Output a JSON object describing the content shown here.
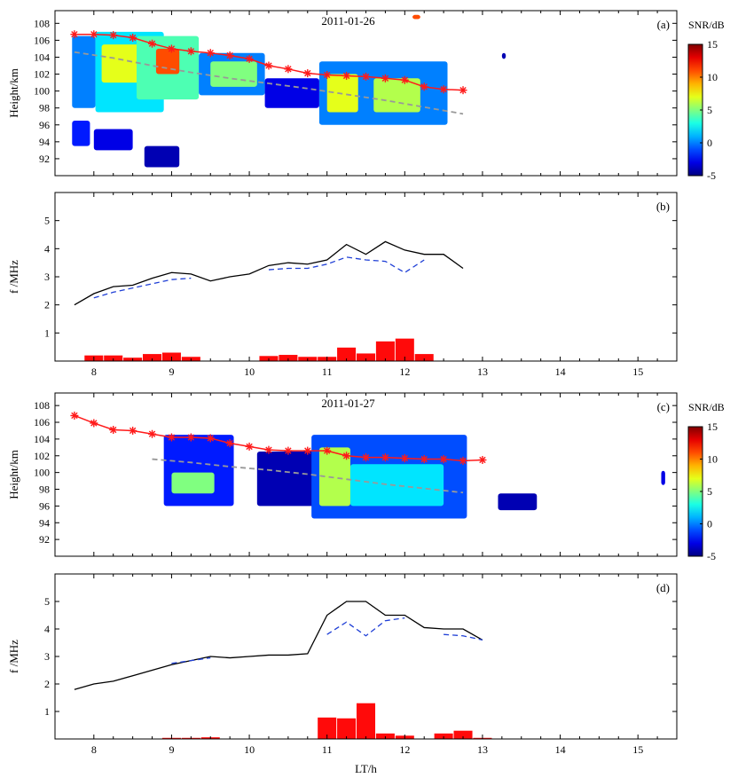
{
  "chart_data": [
    {
      "panel": "(a)",
      "type": "heatmap",
      "date": "2011-01-26",
      "ylabel": "Height/km",
      "xlim": [
        7.5,
        15.5
      ],
      "ylim": [
        90,
        109.5
      ],
      "yticks": [
        92,
        94,
        96,
        98,
        100,
        102,
        104,
        106,
        108
      ],
      "colorbar": {
        "label": "SNR/dB",
        "min": -5,
        "max": 15,
        "ticks": [
          -5,
          0,
          5,
          10,
          15
        ]
      },
      "snr_regions": [
        {
          "x0": 7.72,
          "x1": 8.02,
          "y0": 98,
          "y1": 106.5,
          "snr": 0
        },
        {
          "x0": 8.02,
          "x1": 8.9,
          "y0": 97.5,
          "y1": 107,
          "snr": 2
        },
        {
          "x0": 8.1,
          "x1": 8.6,
          "y0": 101,
          "y1": 105.5,
          "snr": 7
        },
        {
          "x0": 8.55,
          "x1": 9.35,
          "y0": 99,
          "y1": 106.5,
          "snr": 4
        },
        {
          "x0": 8.8,
          "x1": 9.1,
          "y0": 102,
          "y1": 105,
          "snr": 11
        },
        {
          "x0": 9.35,
          "x1": 10.2,
          "y0": 99.5,
          "y1": 104.5,
          "snr": 0
        },
        {
          "x0": 9.5,
          "x1": 10.1,
          "y0": 100.5,
          "y1": 103.5,
          "snr": 5
        },
        {
          "x0": 10.2,
          "x1": 10.9,
          "y0": 98,
          "y1": 101.5,
          "snr": -3
        },
        {
          "x0": 10.9,
          "x1": 12.55,
          "y0": 96,
          "y1": 103.5,
          "snr": 0
        },
        {
          "x0": 11.0,
          "x1": 11.4,
          "y0": 97.5,
          "y1": 102,
          "snr": 7
        },
        {
          "x0": 11.6,
          "x1": 12.2,
          "y0": 97.5,
          "y1": 101.5,
          "snr": 6
        },
        {
          "x0": 7.72,
          "x1": 7.95,
          "y0": 93.5,
          "y1": 96.5,
          "snr": -2
        },
        {
          "x0": 8.0,
          "x1": 8.5,
          "y0": 93,
          "y1": 95.5,
          "snr": -3
        },
        {
          "x0": 8.65,
          "x1": 9.1,
          "y0": 91,
          "y1": 93.5,
          "snr": -4
        },
        {
          "x0": 12.1,
          "x1": 12.2,
          "y0": 108.5,
          "y1": 109,
          "snr": 11
        },
        {
          "x0": 13.25,
          "x1": 13.3,
          "y0": 103.8,
          "y1": 104.5,
          "snr": -4
        }
      ],
      "series": [
        {
          "style": "red-star-line",
          "x": [
            7.75,
            8.0,
            8.25,
            8.5,
            8.75,
            9.0,
            9.25,
            9.5,
            9.75,
            10.0,
            10.25,
            10.5,
            10.75,
            11.0,
            11.25,
            11.5,
            11.75,
            12.0,
            12.25,
            12.5,
            12.75
          ],
          "y": [
            106.7,
            106.7,
            106.6,
            106.3,
            105.6,
            105.0,
            104.7,
            104.5,
            104.2,
            103.8,
            103.0,
            102.6,
            102.1,
            101.9,
            101.8,
            101.7,
            101.5,
            101.3,
            100.5,
            100.2,
            100.1
          ]
        },
        {
          "style": "gray-dashed-line",
          "x": [
            7.75,
            8.25,
            8.75,
            9.25,
            9.75,
            10.25,
            10.75,
            11.25,
            11.75,
            12.25,
            12.75
          ],
          "y": [
            104.6,
            103.9,
            103.0,
            102.2,
            101.5,
            100.9,
            100.3,
            99.6,
            98.9,
            98.1,
            97.3
          ]
        }
      ]
    },
    {
      "panel": "(b)",
      "type": "line+bar",
      "ylabel": "f /MHz",
      "xlim": [
        7.5,
        15.5
      ],
      "ylim": [
        0,
        6
      ],
      "yticks": [
        1,
        2,
        3,
        4,
        5
      ],
      "series": [
        {
          "style": "black-solid-line",
          "x": [
            7.75,
            8.0,
            8.25,
            8.5,
            8.75,
            9.0,
            9.25,
            9.5,
            9.75,
            10.0,
            10.25,
            10.5,
            10.75,
            11.0,
            11.25,
            11.5,
            11.75,
            12.0,
            12.25,
            12.5,
            12.75
          ],
          "y": [
            2.0,
            2.4,
            2.65,
            2.7,
            2.95,
            3.15,
            3.1,
            2.85,
            3.0,
            3.1,
            3.4,
            3.5,
            3.45,
            3.6,
            4.15,
            3.8,
            4.25,
            3.95,
            3.8,
            3.8,
            3.3
          ]
        },
        {
          "style": "blue-dashed-line",
          "segments": [
            {
              "x": [
                8.0,
                8.25,
                8.5,
                8.75,
                9.0,
                9.25
              ],
              "y": [
                2.25,
                2.45,
                2.6,
                2.75,
                2.9,
                2.95
              ]
            },
            {
              "x": [
                10.25,
                10.5,
                10.75,
                11.0,
                11.25,
                11.5,
                11.75,
                12.0,
                12.25
              ],
              "y": [
                3.25,
                3.3,
                3.3,
                3.45,
                3.7,
                3.6,
                3.55,
                3.15,
                3.6
              ]
            }
          ]
        },
        {
          "style": "red-bars",
          "x": [
            8.0,
            8.25,
            8.5,
            8.75,
            9.0,
            9.25,
            10.25,
            10.5,
            10.75,
            11.0,
            11.25,
            11.5,
            11.75,
            12.0,
            12.25
          ],
          "y": [
            0.2,
            0.2,
            0.12,
            0.25,
            0.3,
            0.15,
            0.18,
            0.22,
            0.15,
            0.15,
            0.48,
            0.27,
            0.7,
            0.8,
            0.25
          ]
        }
      ]
    },
    {
      "panel": "(c)",
      "type": "heatmap",
      "date": "2011-01-27",
      "ylabel": "Height/km",
      "xlim": [
        7.5,
        15.5
      ],
      "ylim": [
        90,
        109.5
      ],
      "yticks": [
        92,
        94,
        96,
        98,
        100,
        102,
        104,
        106,
        108
      ],
      "colorbar": {
        "label": "SNR/dB",
        "min": -5,
        "max": 15,
        "ticks": [
          -5,
          0,
          5,
          10,
          15
        ]
      },
      "snr_regions": [
        {
          "x0": 8.9,
          "x1": 9.8,
          "y0": 96,
          "y1": 104.5,
          "snr": -2
        },
        {
          "x0": 9.0,
          "x1": 9.55,
          "y0": 97.5,
          "y1": 100,
          "snr": 5
        },
        {
          "x0": 10.1,
          "x1": 10.9,
          "y0": 96,
          "y1": 102.5,
          "snr": -4
        },
        {
          "x0": 10.8,
          "x1": 12.8,
          "y0": 94.5,
          "y1": 104.5,
          "snr": -1
        },
        {
          "x0": 10.9,
          "x1": 11.3,
          "y0": 96,
          "y1": 103,
          "snr": 6
        },
        {
          "x0": 11.3,
          "x1": 12.5,
          "y0": 96,
          "y1": 101,
          "snr": 2
        },
        {
          "x0": 13.2,
          "x1": 13.7,
          "y0": 95.5,
          "y1": 97.5,
          "snr": -4
        },
        {
          "x0": 15.3,
          "x1": 15.35,
          "y0": 98.5,
          "y1": 100.2,
          "snr": -3
        }
      ],
      "series": [
        {
          "style": "red-star-line",
          "x": [
            7.75,
            8.0,
            8.25,
            8.5,
            8.75,
            9.0,
            9.25,
            9.5,
            9.75,
            10.0,
            10.25,
            10.5,
            10.75,
            11.0,
            11.25,
            11.5,
            11.75,
            12.0,
            12.25,
            12.5,
            12.75,
            13.0
          ],
          "y": [
            106.8,
            105.9,
            105.1,
            105.0,
            104.6,
            104.2,
            104.2,
            104.1,
            103.5,
            103.1,
            102.7,
            102.6,
            102.6,
            102.6,
            102.0,
            101.8,
            101.8,
            101.7,
            101.6,
            101.6,
            101.4,
            101.5
          ]
        },
        {
          "style": "gray-dashed-line",
          "x": [
            8.75,
            9.25,
            9.75,
            10.25,
            10.75,
            11.25,
            11.75,
            12.25,
            12.75
          ],
          "y": [
            101.6,
            101.2,
            100.7,
            100.3,
            99.8,
            99.2,
            98.6,
            98.1,
            97.6
          ]
        }
      ]
    },
    {
      "panel": "(d)",
      "type": "line+bar",
      "ylabel": "f /MHz",
      "xlabel": "LT/h",
      "xlim": [
        7.5,
        15.5
      ],
      "ylim": [
        0,
        6
      ],
      "yticks": [
        1,
        2,
        3,
        4,
        5
      ],
      "xticks": [
        8,
        9,
        10,
        11,
        12,
        13,
        14,
        15
      ],
      "series": [
        {
          "style": "black-solid-line",
          "x": [
            7.75,
            8.0,
            8.25,
            8.5,
            8.75,
            9.0,
            9.25,
            9.5,
            9.75,
            10.0,
            10.25,
            10.5,
            10.75,
            11.0,
            11.25,
            11.5,
            11.75,
            12.0,
            12.25,
            12.5,
            12.75,
            13.0
          ],
          "y": [
            1.8,
            2.0,
            2.1,
            2.3,
            2.5,
            2.7,
            2.85,
            3.0,
            2.95,
            3.0,
            3.05,
            3.05,
            3.1,
            4.5,
            5.0,
            5.0,
            4.5,
            4.5,
            4.05,
            4.0,
            4.0,
            3.6
          ]
        },
        {
          "style": "blue-dashed-line",
          "segments": [
            {
              "x": [
                9.0,
                9.25,
                9.5
              ],
              "y": [
                2.75,
                2.85,
                2.95
              ]
            },
            {
              "x": [
                11.0,
                11.25,
                11.5,
                11.75,
                12.0
              ],
              "y": [
                3.8,
                4.25,
                3.75,
                4.3,
                4.4
              ]
            },
            {
              "x": [
                12.5,
                12.75,
                13.0
              ],
              "y": [
                3.8,
                3.75,
                3.6
              ]
            }
          ]
        },
        {
          "style": "red-bars",
          "x": [
            9.0,
            9.25,
            9.5,
            11.0,
            11.25,
            11.5,
            11.75,
            12.0,
            12.5,
            12.75,
            13.0
          ],
          "y": [
            0.04,
            0.04,
            0.06,
            0.78,
            0.75,
            1.3,
            0.2,
            0.12,
            0.2,
            0.3,
            0.04
          ]
        }
      ]
    }
  ]
}
